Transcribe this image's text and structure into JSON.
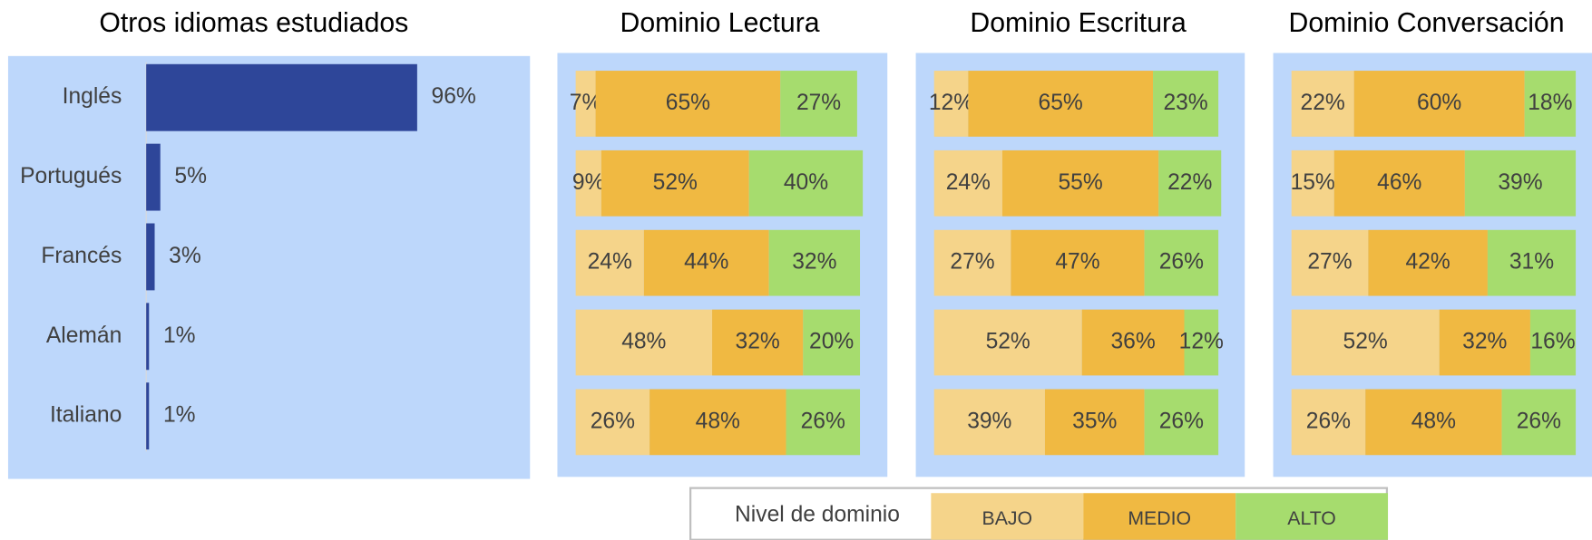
{
  "chart_data": [
    {
      "type": "bar",
      "orientation": "horizontal",
      "title": "Otros idiomas estudiados",
      "categories": [
        "Inglés",
        "Portugués",
        "Francés",
        "Alemán",
        "Italiano"
      ],
      "values": [
        96,
        5,
        3,
        1,
        1
      ],
      "value_labels": [
        "96%",
        "5%",
        "3%",
        "1%",
        "1%"
      ],
      "color": "#2e4699",
      "xlim": [
        0,
        100
      ]
    },
    {
      "type": "stacked_bar",
      "orientation": "horizontal",
      "title": "Dominio Lectura",
      "xlim": [
        0,
        100
      ],
      "series": [
        {
          "name": "BAJO",
          "color": "#f5d48a",
          "values": [
            7,
            9,
            24,
            48,
            26
          ],
          "value_labels": [
            "7%",
            "9%",
            "24%",
            "48%",
            "26%"
          ]
        },
        {
          "name": "MEDIO",
          "color": "#f0b942",
          "values": [
            65,
            52,
            44,
            32,
            48
          ],
          "value_labels": [
            "65%",
            "52%",
            "44%",
            "32%",
            "48%"
          ]
        },
        {
          "name": "ALTO",
          "color": "#a6dc6e",
          "values": [
            27,
            40,
            32,
            20,
            26
          ],
          "value_labels": [
            "27%",
            "40%",
            "32%",
            "20%",
            "26%"
          ]
        }
      ]
    },
    {
      "type": "stacked_bar",
      "orientation": "horizontal",
      "title": "Dominio Escritura",
      "xlim": [
        0,
        100
      ],
      "series": [
        {
          "name": "BAJO",
          "color": "#f5d48a",
          "values": [
            12,
            24,
            27,
            52,
            39
          ],
          "value_labels": [
            "12%",
            "24%",
            "27%",
            "52%",
            "39%"
          ]
        },
        {
          "name": "MEDIO",
          "color": "#f0b942",
          "values": [
            65,
            55,
            47,
            36,
            35
          ],
          "value_labels": [
            "65%",
            "55%",
            "47%",
            "36%",
            "35%"
          ]
        },
        {
          "name": "ALTO",
          "color": "#a6dc6e",
          "values": [
            23,
            22,
            26,
            12,
            26
          ],
          "value_labels": [
            "23%",
            "22%",
            "26%",
            "12%",
            "26%"
          ]
        }
      ]
    },
    {
      "type": "stacked_bar",
      "orientation": "horizontal",
      "title": "Dominio Conversación",
      "xlim": [
        0,
        100
      ],
      "series": [
        {
          "name": "BAJO",
          "color": "#f5d48a",
          "values": [
            22,
            15,
            27,
            52,
            26
          ],
          "value_labels": [
            "22%",
            "15%",
            "27%",
            "52%",
            "26%"
          ]
        },
        {
          "name": "MEDIO",
          "color": "#f0b942",
          "values": [
            60,
            46,
            42,
            32,
            48
          ],
          "value_labels": [
            "60%",
            "46%",
            "42%",
            "32%",
            "48%"
          ]
        },
        {
          "name": "ALTO",
          "color": "#a6dc6e",
          "values": [
            18,
            39,
            31,
            16,
            26
          ],
          "value_labels": [
            "18%",
            "39%",
            "31%",
            "16%",
            "26%"
          ]
        }
      ]
    }
  ],
  "legend": {
    "title": "Nivel de dominio"
  }
}
